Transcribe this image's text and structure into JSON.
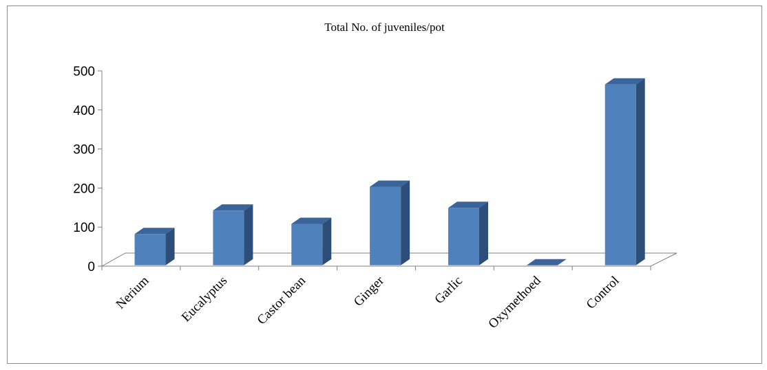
{
  "chart_data": {
    "type": "bar",
    "title": "Total No. of juveniles/pot",
    "categories": [
      "Nerium",
      "Eucalyptus",
      "Castor bean",
      "Ginger",
      "Garlic",
      "Oxymethoed",
      "Control"
    ],
    "values": [
      80,
      140,
      106,
      201,
      147,
      0,
      463
    ],
    "ylim": [
      0,
      500
    ],
    "yticks": [
      "0",
      "100",
      "200",
      "300",
      "400",
      "500"
    ],
    "xlabel": "",
    "ylabel": "",
    "grid": false,
    "legend": "none",
    "style": "3d-column",
    "colors": {
      "front": "#4F81BD",
      "side": "#2E4E7A",
      "top": "#3B649A"
    }
  }
}
